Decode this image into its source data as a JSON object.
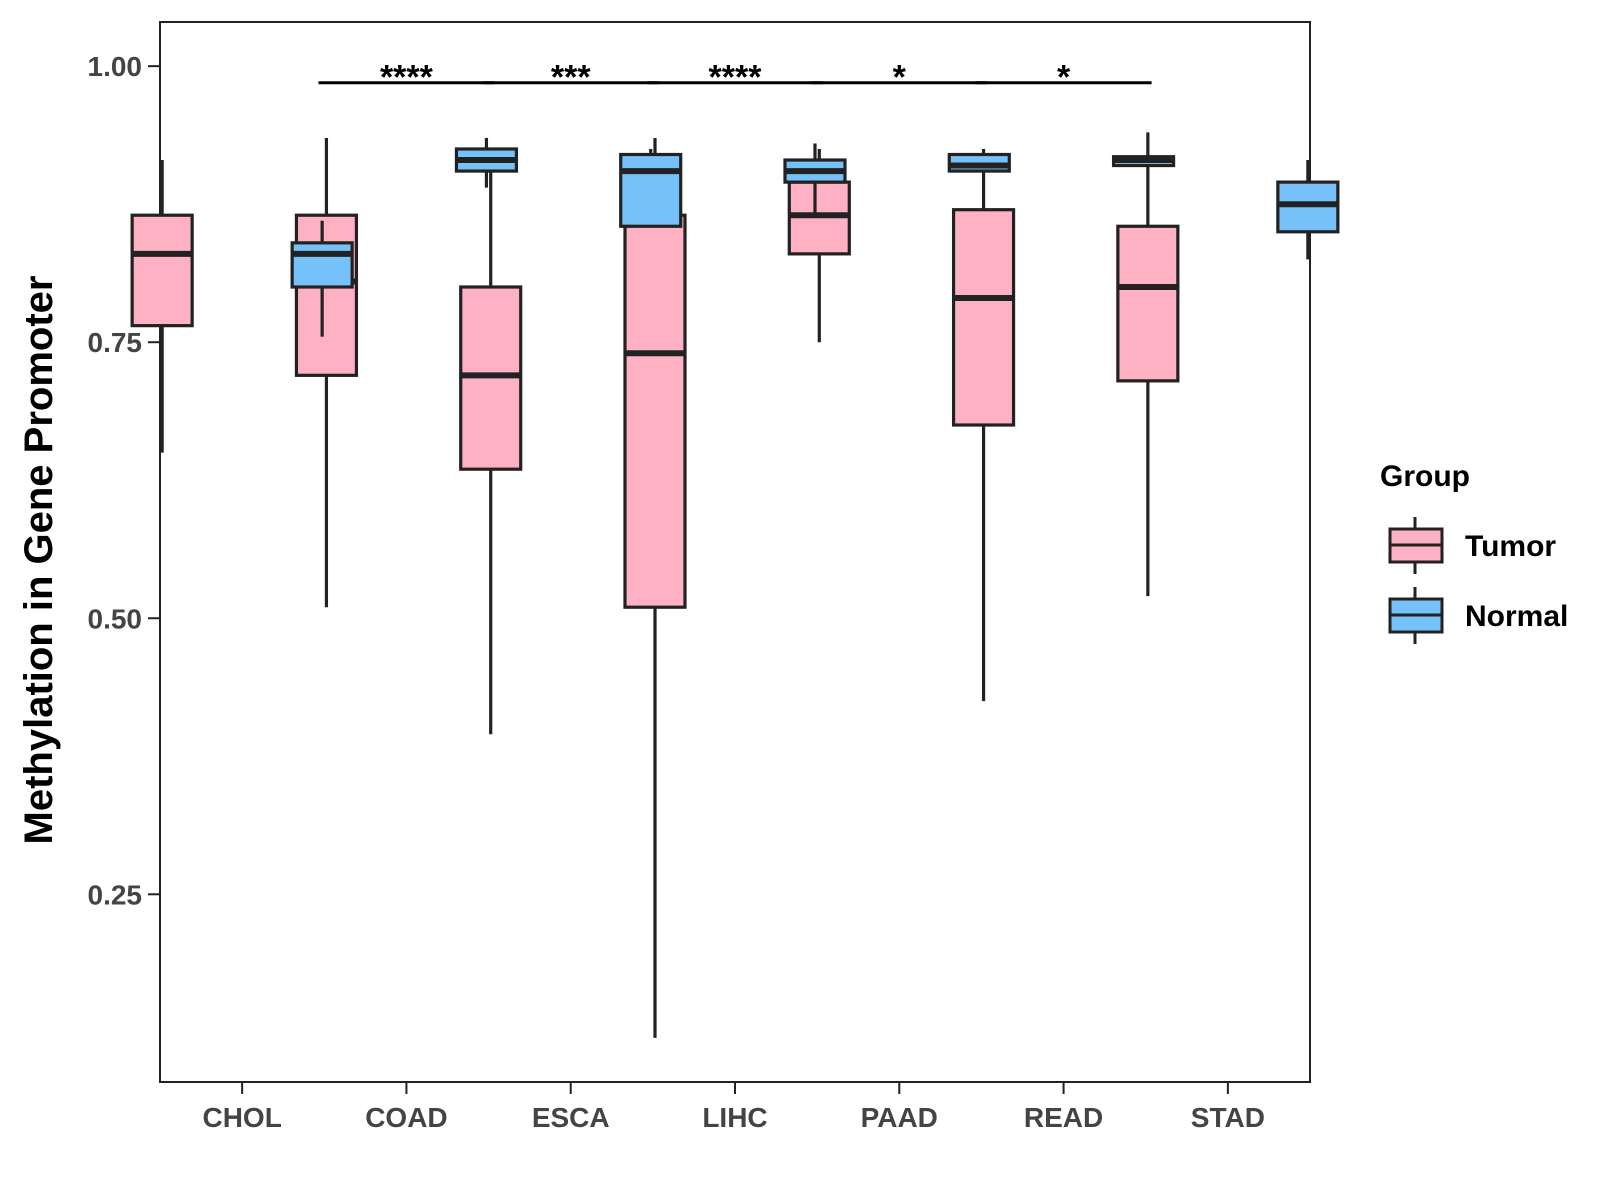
{
  "chart_data": {
    "type": "boxplot",
    "title": "",
    "xlabel": "",
    "ylabel": "Methylation in Gene Promoter",
    "ylim": [
      0.08,
      1.04
    ],
    "yticks": [
      0.25,
      0.5,
      0.75,
      1.0
    ],
    "ytick_labels": [
      "0.25",
      "0.50",
      "0.75",
      "1.00"
    ],
    "categories": [
      "CHOL",
      "COAD",
      "ESCA",
      "LIHC",
      "PAAD",
      "READ",
      "STAD"
    ],
    "legend": {
      "title": "Group",
      "position": "right",
      "entries": [
        {
          "name": "Tumor",
          "color": "#FDB1C3"
        },
        {
          "name": "Normal",
          "color": "#76C1F9"
        }
      ]
    },
    "series": [
      {
        "name": "Tumor",
        "color": "#FDB1C3",
        "boxes": [
          {
            "category": "CHOL",
            "min": 0.65,
            "q1": 0.765,
            "median": 0.83,
            "q3": 0.865,
            "max": 0.915
          },
          {
            "category": "COAD",
            "min": 0.51,
            "q1": 0.72,
            "median": 0.805,
            "q3": 0.865,
            "max": 0.935
          },
          {
            "category": "ESCA",
            "min": 0.395,
            "q1": 0.635,
            "median": 0.72,
            "q3": 0.8,
            "max": 0.91
          },
          {
            "category": "LIHC",
            "min": 0.12,
            "q1": 0.51,
            "median": 0.74,
            "q3": 0.865,
            "max": 0.935
          },
          {
            "category": "PAAD",
            "min": 0.75,
            "q1": 0.83,
            "median": 0.865,
            "q3": 0.895,
            "max": 0.925
          },
          {
            "category": "READ",
            "min": 0.425,
            "q1": 0.675,
            "median": 0.79,
            "q3": 0.87,
            "max": 0.925
          },
          {
            "category": "STAD",
            "min": 0.52,
            "q1": 0.715,
            "median": 0.8,
            "q3": 0.855,
            "max": 0.94
          }
        ]
      },
      {
        "name": "Normal",
        "color": "#76C1F9",
        "boxes": [
          {
            "category": "CHOL",
            "min": 0.755,
            "q1": 0.8,
            "median": 0.83,
            "q3": 0.84,
            "max": 0.86
          },
          {
            "category": "COAD",
            "min": 0.89,
            "q1": 0.905,
            "median": 0.915,
            "q3": 0.925,
            "max": 0.935
          },
          {
            "category": "ESCA",
            "min": 0.855,
            "q1": 0.855,
            "median": 0.905,
            "q3": 0.92,
            "max": 0.925
          },
          {
            "category": "LIHC",
            "min": 0.865,
            "q1": 0.895,
            "median": 0.905,
            "q3": 0.915,
            "max": 0.93
          },
          {
            "category": "PAAD",
            "min": 0.905,
            "q1": 0.905,
            "median": 0.91,
            "q3": 0.92,
            "max": 0.92
          },
          {
            "category": "READ",
            "min": 0.91,
            "q1": 0.91,
            "median": 0.915,
            "q3": 0.918,
            "max": 0.918
          },
          {
            "category": "STAD",
            "min": 0.825,
            "q1": 0.85,
            "median": 0.875,
            "q3": 0.895,
            "max": 0.915
          }
        ]
      }
    ],
    "significance": [
      {
        "category": "COAD",
        "label": "****"
      },
      {
        "category": "ESCA",
        "label": "***"
      },
      {
        "category": "LIHC",
        "label": "****"
      },
      {
        "category": "PAAD",
        "label": "*"
      },
      {
        "category": "READ",
        "label": "*"
      }
    ],
    "significance_level": 0.985
  }
}
